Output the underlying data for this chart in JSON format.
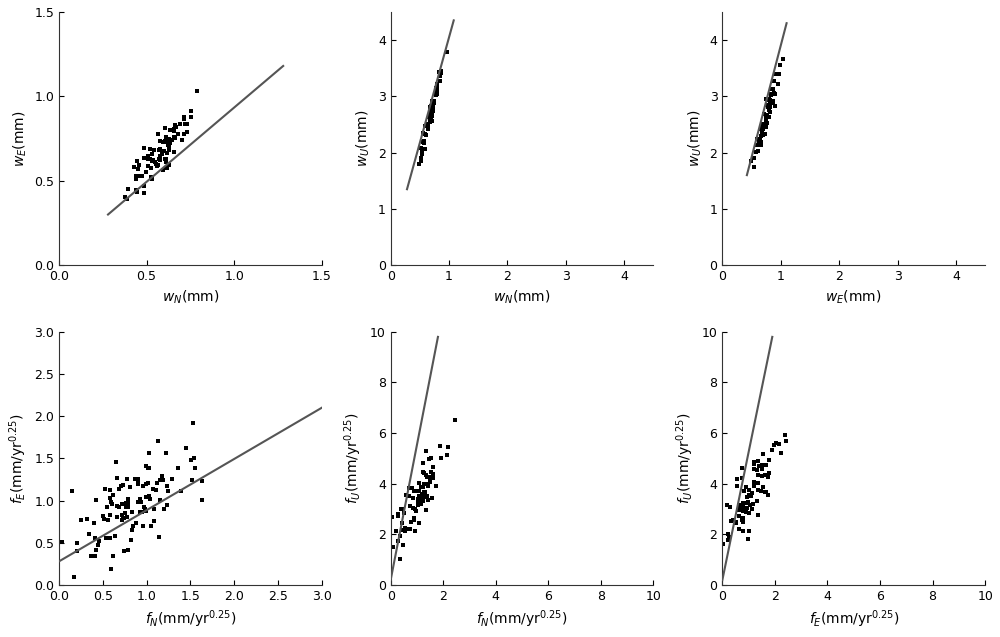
{
  "plots": [
    {
      "xlabel": "$w_N$(mm)",
      "ylabel": "$w_E$(mm)",
      "xlim": [
        0,
        1.5
      ],
      "ylim": [
        0,
        1.5
      ],
      "xticks": [
        0,
        0.5,
        1.0,
        1.5
      ],
      "yticks": [
        0,
        0.5,
        1.0,
        1.5
      ],
      "scatter_x_mean": 0.57,
      "scatter_x_std": 0.1,
      "scatter_y_mean": 0.65,
      "scatter_y_std": 0.14,
      "corr": 0.88,
      "n_points": 85,
      "line_x": [
        0.28,
        1.28
      ],
      "line_y": [
        0.3,
        1.18
      ],
      "seed": 42
    },
    {
      "xlabel": "$w_N$(mm)",
      "ylabel": "$w_U$(mm)",
      "xlim": [
        0,
        4.5
      ],
      "ylim": [
        0,
        4.5
      ],
      "xticks": [
        0,
        1,
        2,
        3,
        4
      ],
      "yticks": [
        0,
        1,
        2,
        3,
        4
      ],
      "scatter_x_mean": 0.68,
      "scatter_x_std": 0.09,
      "scatter_y_mean": 2.65,
      "scatter_y_std": 0.38,
      "corr": 0.97,
      "n_points": 65,
      "line_x": [
        0.28,
        1.08
      ],
      "line_y": [
        1.35,
        4.35
      ],
      "seed": 43
    },
    {
      "xlabel": "$w_E$(mm)",
      "ylabel": "$w_U$(mm)",
      "xlim": [
        0,
        4.5
      ],
      "ylim": [
        0,
        4.5
      ],
      "xticks": [
        0,
        1,
        2,
        3,
        4
      ],
      "yticks": [
        0,
        1,
        2,
        3,
        4
      ],
      "scatter_x_mean": 0.75,
      "scatter_x_std": 0.11,
      "scatter_y_mean": 2.65,
      "scatter_y_std": 0.4,
      "corr": 0.96,
      "n_points": 65,
      "line_x": [
        0.42,
        1.1
      ],
      "line_y": [
        1.6,
        4.3
      ],
      "seed": 44
    },
    {
      "xlabel": "$f_N$(mm/yr$^{0.25}$)",
      "ylabel": "$f_E$(mm/yr$^{0.25}$)",
      "xlim": [
        0,
        3
      ],
      "ylim": [
        0,
        3
      ],
      "xticks": [
        0,
        0.5,
        1.0,
        1.5,
        2.0,
        2.5,
        3.0
      ],
      "yticks": [
        0,
        0.5,
        1.0,
        1.5,
        2.0,
        2.5,
        3.0
      ],
      "scatter_x_mean": 0.82,
      "scatter_x_std": 0.38,
      "scatter_y_mean": 0.93,
      "scatter_y_std": 0.38,
      "corr": 0.72,
      "n_points": 115,
      "line_x": [
        0.0,
        3.0
      ],
      "line_y": [
        0.28,
        2.1
      ],
      "seed": 45
    },
    {
      "xlabel": "$f_N$(mm/yr$^{0.25}$)",
      "ylabel": "$f_U$(mm/yr$^{0.25}$)",
      "xlim": [
        0,
        10
      ],
      "ylim": [
        0,
        10
      ],
      "xticks": [
        0,
        2,
        4,
        6,
        8,
        10
      ],
      "yticks": [
        0,
        2,
        4,
        6,
        8,
        10
      ],
      "scatter_x_mean": 1.05,
      "scatter_x_std": 0.6,
      "scatter_y_mean": 3.5,
      "scatter_y_std": 1.1,
      "corr": 0.88,
      "n_points": 90,
      "line_x": [
        0.0,
        1.8
      ],
      "line_y": [
        0.2,
        9.8
      ],
      "seed": 46
    },
    {
      "xlabel": "$f_E$(mm/yr$^{0.25}$)",
      "ylabel": "$f_U$(mm/yr$^{0.25}$)",
      "xlim": [
        0,
        10
      ],
      "ylim": [
        0,
        10
      ],
      "xticks": [
        0,
        2,
        4,
        6,
        8,
        10
      ],
      "yticks": [
        0,
        2,
        4,
        6,
        8,
        10
      ],
      "scatter_x_mean": 1.05,
      "scatter_x_std": 0.6,
      "scatter_y_mean": 3.5,
      "scatter_y_std": 1.1,
      "corr": 0.87,
      "n_points": 90,
      "line_x": [
        0.0,
        1.9
      ],
      "line_y": [
        0.2,
        9.8
      ],
      "seed": 47
    }
  ],
  "marker_size": 5,
  "marker_color": "#000000",
  "line_color": "#555555",
  "line_width": 1.5,
  "tick_fontsize": 9,
  "label_fontsize": 10,
  "fig_width": 10.0,
  "fig_height": 6.37,
  "background_color": "#ffffff"
}
